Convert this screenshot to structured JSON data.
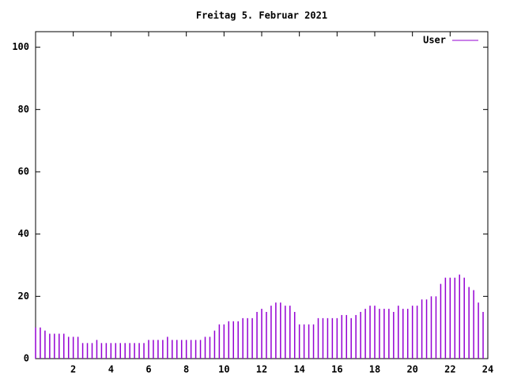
{
  "chart_data": {
    "type": "impulse",
    "title": "Freitag 5. Februar 2021",
    "x": [
      0,
      0.25,
      0.5,
      0.75,
      1,
      1.25,
      1.5,
      1.75,
      2,
      2.25,
      2.5,
      2.75,
      3,
      3.25,
      3.5,
      3.75,
      4,
      4.25,
      4.5,
      4.75,
      5,
      5.25,
      5.5,
      5.75,
      6,
      6.25,
      6.5,
      6.75,
      7,
      7.25,
      7.5,
      7.75,
      8,
      8.25,
      8.5,
      8.75,
      9,
      9.25,
      9.5,
      9.75,
      10,
      10.25,
      10.5,
      10.75,
      11,
      11.25,
      11.5,
      11.75,
      12,
      12.25,
      12.5,
      12.75,
      13,
      13.25,
      13.5,
      13.75,
      14,
      14.25,
      14.5,
      14.75,
      15,
      15.25,
      15.5,
      15.75,
      16,
      16.25,
      16.5,
      16.75,
      17,
      17.25,
      17.5,
      17.75,
      18,
      18.25,
      18.5,
      18.75,
      19,
      19.25,
      19.5,
      19.75,
      20,
      20.25,
      20.5,
      20.75,
      21,
      21.25,
      21.5,
      21.75,
      22,
      22.25,
      22.5,
      22.75,
      23,
      23.25,
      23.5,
      23.75
    ],
    "series": [
      {
        "name": "User",
        "color": "#9400d3",
        "values": [
          10,
          10,
          9,
          8,
          8,
          8,
          8,
          7,
          7,
          7,
          5,
          5,
          5,
          6,
          5,
          5,
          5,
          5,
          5,
          5,
          5,
          5,
          5,
          5,
          6,
          6,
          6,
          6,
          7,
          6,
          6,
          6,
          6,
          6,
          6,
          6,
          7,
          7,
          9,
          11,
          11,
          12,
          12,
          12,
          13,
          13,
          13,
          15,
          16,
          15,
          17,
          18,
          18,
          17,
          17,
          15,
          11,
          11,
          11,
          11,
          13,
          13,
          13,
          13,
          13,
          14,
          14,
          13,
          14,
          15,
          16,
          17,
          17,
          16,
          16,
          16,
          15,
          17,
          16,
          16,
          17,
          17,
          19,
          19,
          20,
          20,
          24,
          26,
          26,
          26,
          27,
          26,
          23,
          22,
          18,
          15
        ]
      }
    ],
    "xlim": [
      0,
      24
    ],
    "xticks": [
      2,
      4,
      6,
      8,
      10,
      12,
      14,
      16,
      18,
      20,
      22,
      24
    ],
    "ylim": [
      0,
      105
    ],
    "yticks": [
      0,
      20,
      40,
      60,
      80,
      100
    ],
    "legend": "top-right"
  }
}
